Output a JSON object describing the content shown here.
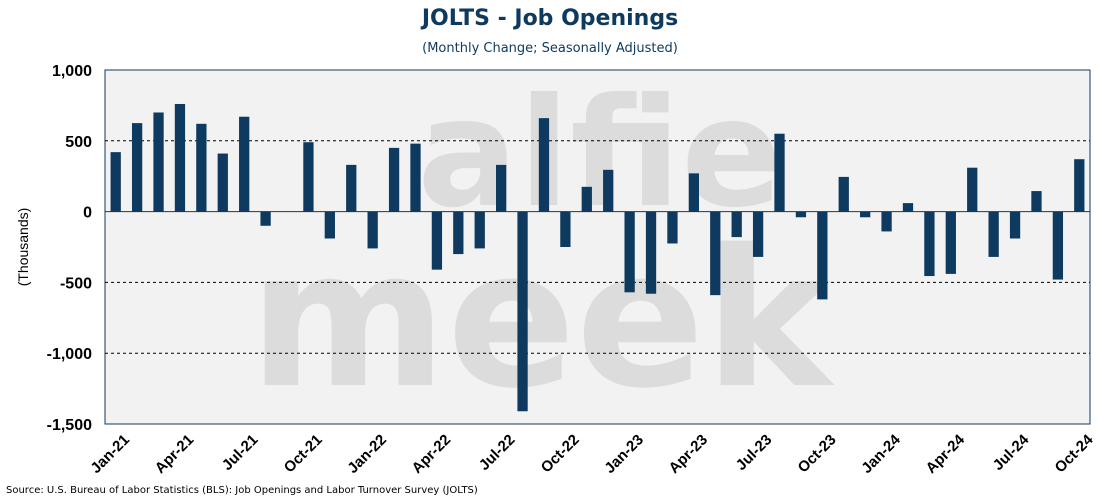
{
  "chart_data": {
    "type": "bar",
    "title": "JOLTS - Job Openings",
    "subtitle": "(Monthly Change; Seasonally Adjusted)",
    "ylabel": "(Thousands)",
    "xlabel": "",
    "ylim": [
      -1500,
      1000
    ],
    "yticks": [
      1000,
      500,
      0,
      -500,
      -1000,
      -1500
    ],
    "ytick_labels": [
      "1,000",
      "500",
      "0",
      "-500",
      "-1,000",
      "-1,500"
    ],
    "gridlines": [
      500,
      -500,
      -1000
    ],
    "grid_style": "dashed",
    "xtick_labels": [
      "Jan-21",
      "Apr-21",
      "Jul-21",
      "Oct-21",
      "Jan-22",
      "Apr-22",
      "Jul-22",
      "Oct-22",
      "Jan-23",
      "Apr-23",
      "Jul-23",
      "Oct-23",
      "Jan-24",
      "Apr-24",
      "Jul-24",
      "Oct-24"
    ],
    "categories": [
      "Jan-21",
      "Feb-21",
      "Mar-21",
      "Apr-21",
      "May-21",
      "Jun-21",
      "Jul-21",
      "Aug-21",
      "Sep-21",
      "Oct-21",
      "Nov-21",
      "Dec-21",
      "Jan-22",
      "Feb-22",
      "Mar-22",
      "Apr-22",
      "May-22",
      "Jun-22",
      "Jul-22",
      "Aug-22",
      "Sep-22",
      "Oct-22",
      "Nov-22",
      "Dec-22",
      "Jan-23",
      "Feb-23",
      "Mar-23",
      "Apr-23",
      "May-23",
      "Jun-23",
      "Jul-23",
      "Aug-23",
      "Sep-23",
      "Oct-23",
      "Nov-23",
      "Dec-23",
      "Jan-24",
      "Feb-24",
      "Mar-24",
      "Apr-24",
      "May-24",
      "Jun-24",
      "Jul-24",
      "Aug-24",
      "Sep-24",
      "Oct-24"
    ],
    "values": [
      420,
      625,
      700,
      760,
      620,
      410,
      670,
      -100,
      0,
      490,
      -190,
      330,
      -260,
      450,
      480,
      -410,
      -300,
      -260,
      330,
      -1410,
      660,
      -250,
      175,
      295,
      -570,
      -580,
      -225,
      270,
      -590,
      -180,
      -320,
      550,
      -40,
      -620,
      245,
      -40,
      -140,
      60,
      -455,
      -440,
      310,
      -320,
      -190,
      145,
      -480,
      370
    ],
    "bar_color": "#0f3a5f",
    "plot_background": "#f2f2f2",
    "legend": "none"
  },
  "watermark": "alfie meek",
  "source": "Source: U.S. Bureau of Labor Statistics (BLS): Job Openings and Labor Turnover Survey (JOLTS)"
}
